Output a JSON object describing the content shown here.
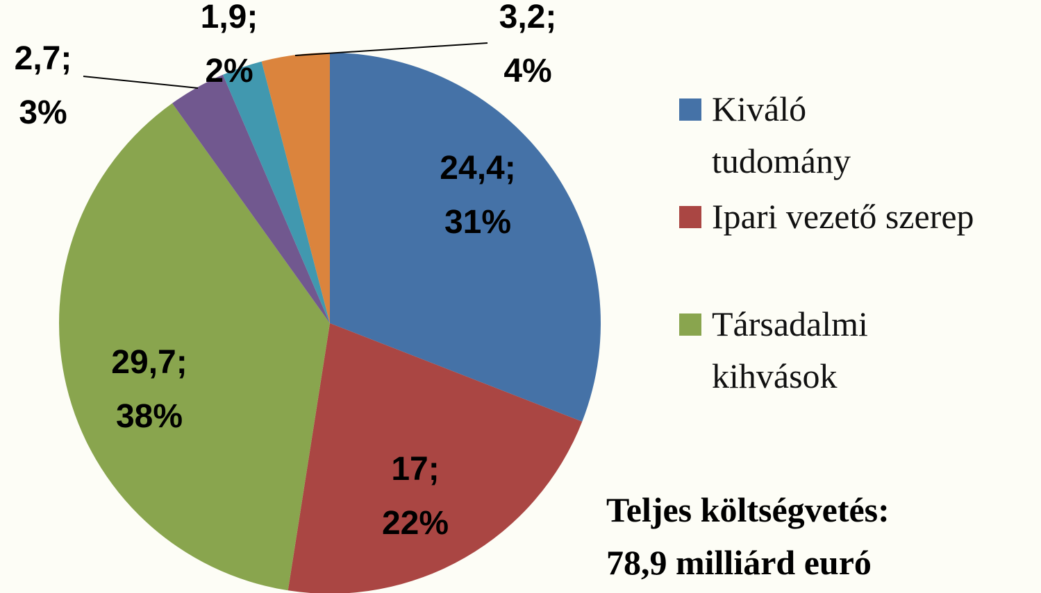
{
  "chart_data": {
    "type": "pie",
    "categories": [
      "Kiváló tudomány",
      "Ipari vezető szerep",
      "Társadalmi kihvások",
      null,
      null,
      null
    ],
    "values": [
      24.4,
      17,
      29.7,
      2.7,
      1.9,
      3.2
    ],
    "value_labels": [
      "24,4;",
      "17;",
      "29,7;",
      "2,7;",
      "1,9;",
      "3,2;"
    ],
    "percent_labels": [
      "31%",
      "22%",
      "38%",
      "3%",
      "2%",
      "4%"
    ],
    "colors": [
      "#4572a7",
      "#aa4643",
      "#89a54e",
      "#71588f",
      "#4198af",
      "#db843d"
    ],
    "legend": "right",
    "annotations": [
      "Teljes költségvetés:",
      "78,9 milliárd euró"
    ]
  }
}
